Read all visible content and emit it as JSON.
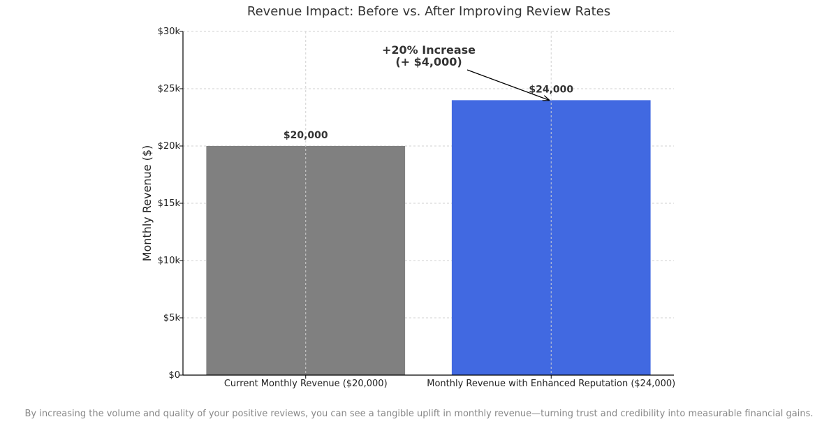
{
  "chart_data": {
    "type": "bar",
    "title": "Revenue Impact: Before vs. After Improving Review Rates",
    "xlabel": "",
    "ylabel": "Monthly Revenue ($)",
    "ylim": [
      0,
      30000
    ],
    "yticks": [
      0,
      5000,
      10000,
      15000,
      20000,
      25000,
      30000
    ],
    "ytick_labels": [
      "$0",
      "$5k",
      "$10k",
      "$15k",
      "$20k",
      "$25k",
      "$30k"
    ],
    "grid": true,
    "categories": [
      "Current Monthly Revenue ($20,000)",
      "Monthly Revenue with Enhanced Reputation ($24,000)"
    ],
    "values": [
      20000,
      24000
    ],
    "colors": [
      "#808080",
      "#4169e1"
    ],
    "data_labels": [
      "$20,000",
      "$24,000"
    ],
    "annotation": {
      "lines": [
        "+20% Increase",
        "(+ $4,000)"
      ],
      "target_category_index": 1
    }
  },
  "caption": "By increasing the volume and quality of your positive reviews, you can see a tangible uplift in monthly revenue—turning trust and credibility into measurable financial gains."
}
